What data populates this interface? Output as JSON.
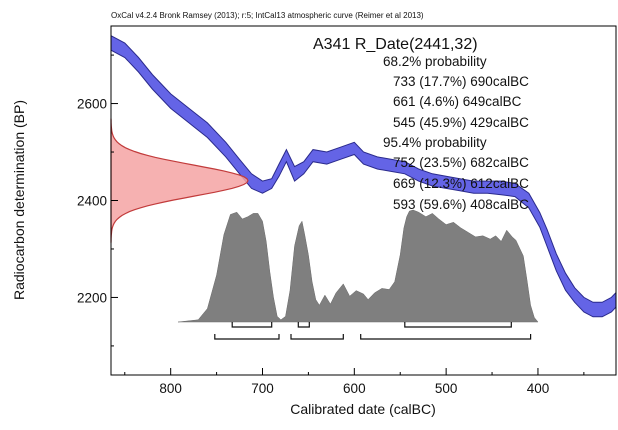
{
  "chart_data": {
    "type": "area",
    "header": "OxCal v4.2.4 Bronk Ramsey (2013); r:5; IntCal13 atmospheric curve (Reimer et al 2013)",
    "title": "A341 R_Date(2441,32)",
    "xlabel": "Calibrated date (calBC)",
    "ylabel": "Radiocarbon determination (BP)",
    "xlim": [
      865,
      315
    ],
    "ylim": [
      2040,
      2760
    ],
    "xticks": [
      800,
      700,
      600,
      500,
      400
    ],
    "yticks": [
      2200,
      2400,
      2600
    ],
    "ranges": [
      {
        "heading": "68.2% probability",
        "lines": [
          "733 (17.7%) 690calBC",
          "661 (4.6%) 649calBC",
          "545 (45.9%) 429calBC"
        ],
        "intervals": [
          [
            733,
            690
          ],
          [
            661,
            649
          ],
          [
            545,
            429
          ]
        ]
      },
      {
        "heading": "95.4% probability",
        "lines": [
          "752 (23.5%) 682calBC",
          "669 (12.3%) 612calBC",
          "593 (59.6%) 408calBC"
        ],
        "intervals": [
          [
            752,
            682
          ],
          [
            669,
            612
          ],
          [
            593,
            408
          ]
        ]
      }
    ],
    "measurement": {
      "mean": 2441,
      "sd": 32
    },
    "calibration_curve": {
      "x": [
        865,
        850,
        835,
        820,
        800,
        780,
        760,
        740,
        725,
        712,
        700,
        690,
        682,
        674,
        665,
        655,
        645,
        630,
        615,
        600,
        590,
        575,
        560,
        545,
        530,
        515,
        500,
        485,
        470,
        455,
        440,
        425,
        410,
        398,
        390,
        380,
        370,
        360,
        350,
        340,
        330,
        320,
        315
      ],
      "upper": [
        2740,
        2725,
        2695,
        2660,
        2620,
        2590,
        2560,
        2520,
        2485,
        2455,
        2440,
        2445,
        2475,
        2505,
        2470,
        2480,
        2505,
        2500,
        2510,
        2520,
        2500,
        2490,
        2485,
        2480,
        2465,
        2455,
        2450,
        2445,
        2440,
        2440,
        2440,
        2435,
        2415,
        2375,
        2340,
        2290,
        2250,
        2220,
        2200,
        2190,
        2190,
        2200,
        2210
      ],
      "lower": [
        2710,
        2695,
        2665,
        2630,
        2590,
        2560,
        2530,
        2490,
        2455,
        2425,
        2415,
        2425,
        2450,
        2480,
        2440,
        2455,
        2480,
        2475,
        2485,
        2495,
        2475,
        2465,
        2460,
        2455,
        2440,
        2430,
        2425,
        2420,
        2415,
        2415,
        2412,
        2408,
        2385,
        2345,
        2305,
        2255,
        2215,
        2190,
        2170,
        2160,
        2160,
        2170,
        2180
      ],
      "color": "#6464e6"
    },
    "posterior_density": {
      "x": [
        792,
        770,
        760,
        750,
        742,
        735,
        728,
        722,
        716,
        710,
        705,
        700,
        696,
        692,
        688,
        684,
        680,
        675,
        670,
        665,
        660,
        657,
        654,
        650,
        646,
        642,
        638,
        632,
        626,
        620,
        612,
        605,
        598,
        590,
        585,
        578,
        570,
        562,
        556,
        550,
        546,
        543,
        540,
        536,
        530,
        522,
        515,
        508,
        500,
        492,
        484,
        476,
        468,
        460,
        452,
        446,
        440,
        434,
        428,
        424,
        420,
        416,
        412,
        408,
        404,
        400
      ],
      "density": [
        0.0,
        0.02,
        0.12,
        0.42,
        0.78,
        0.96,
        0.98,
        0.92,
        0.94,
        0.97,
        0.97,
        0.9,
        0.72,
        0.45,
        0.22,
        0.05,
        0.02,
        0.05,
        0.28,
        0.68,
        0.86,
        0.9,
        0.78,
        0.6,
        0.36,
        0.2,
        0.15,
        0.24,
        0.16,
        0.26,
        0.34,
        0.23,
        0.28,
        0.25,
        0.2,
        0.26,
        0.3,
        0.29,
        0.36,
        0.6,
        0.84,
        0.94,
        0.99,
        1.0,
        0.98,
        0.94,
        0.97,
        0.92,
        0.87,
        0.89,
        0.84,
        0.8,
        0.76,
        0.77,
        0.74,
        0.77,
        0.72,
        0.82,
        0.76,
        0.73,
        0.66,
        0.59,
        0.38,
        0.15,
        0.04,
        0.0
      ],
      "color": "#7f7f7f"
    },
    "measurement_color": "#f4a3a3",
    "measurement_outline": "#c23b3b"
  }
}
